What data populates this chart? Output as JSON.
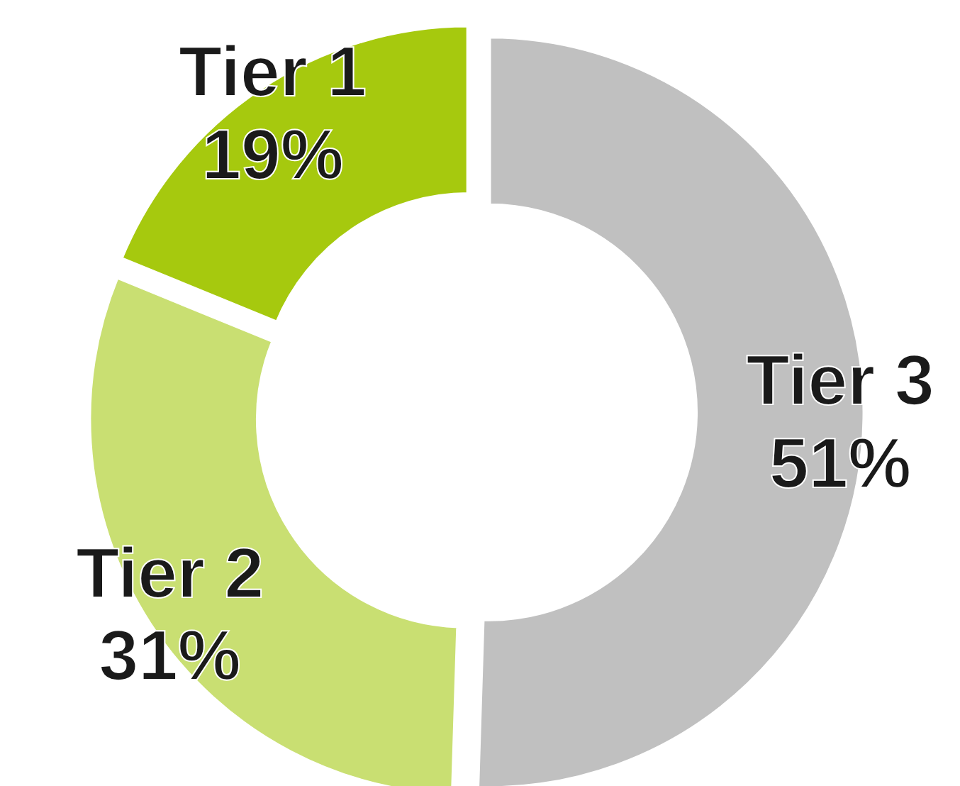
{
  "chart_data": {
    "type": "donut",
    "categories": [
      "Tier 3",
      "Tier 2",
      "Tier 1"
    ],
    "values": [
      51,
      31,
      19
    ],
    "value_labels": [
      "51%",
      "31%",
      "19%"
    ],
    "colors": [
      "#c0c0c0",
      "#c9df72",
      "#a6c90e"
    ]
  }
}
